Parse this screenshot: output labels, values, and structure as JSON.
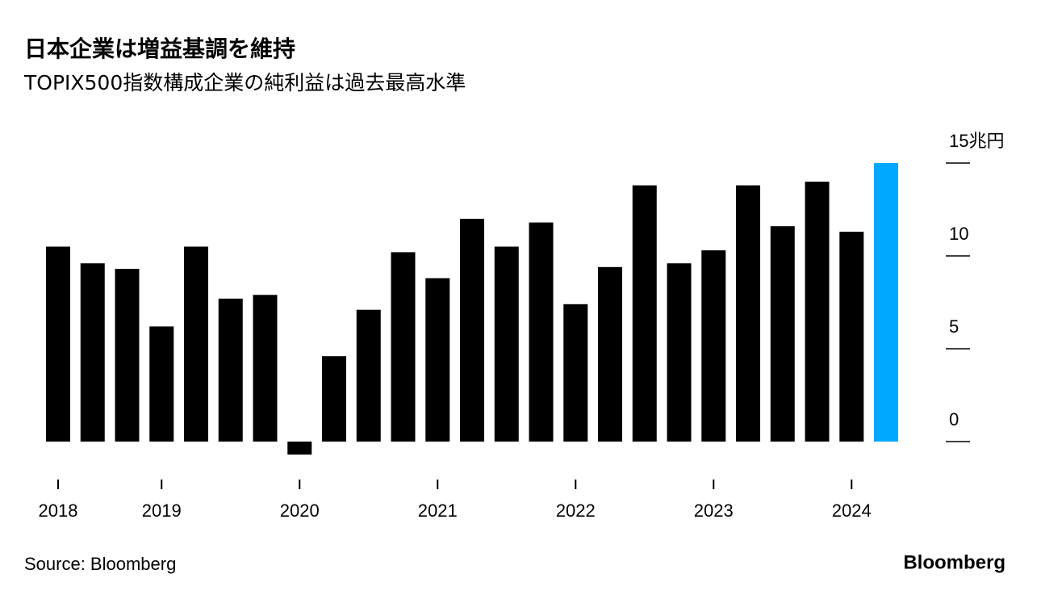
{
  "chart_data": {
    "type": "bar",
    "title": "日本企業は増益基調を維持",
    "subtitle": "TOPIX500指数構成企業の純利益は過去最高水準",
    "source": "Source: Bloomberg",
    "brand": "Bloomberg",
    "categories": [
      "2018",
      null,
      null,
      "2019",
      null,
      null,
      null,
      "2020",
      null,
      null,
      null,
      "2021",
      null,
      null,
      null,
      "2022",
      null,
      null,
      null,
      "2023",
      null,
      null,
      null,
      "2024",
      null
    ],
    "values": [
      10.5,
      9.6,
      9.3,
      6.2,
      10.5,
      7.7,
      7.9,
      -0.7,
      4.6,
      7.1,
      10.2,
      8.8,
      12.0,
      10.5,
      11.8,
      7.4,
      9.4,
      13.8,
      9.6,
      10.3,
      13.8,
      11.6,
      14.0,
      11.3,
      15.0
    ],
    "colors": [
      "#000000",
      "#000000",
      "#000000",
      "#000000",
      "#000000",
      "#000000",
      "#000000",
      "#000000",
      "#000000",
      "#000000",
      "#000000",
      "#000000",
      "#000000",
      "#000000",
      "#000000",
      "#000000",
      "#000000",
      "#000000",
      "#000000",
      "#000000",
      "#000000",
      "#000000",
      "#000000",
      "#000000",
      "#00a8ff"
    ],
    "ylim": [
      -1,
      15
    ],
    "yticks": [
      0,
      5,
      10,
      {
        "value": 15,
        "label": "15兆円"
      }
    ]
  }
}
